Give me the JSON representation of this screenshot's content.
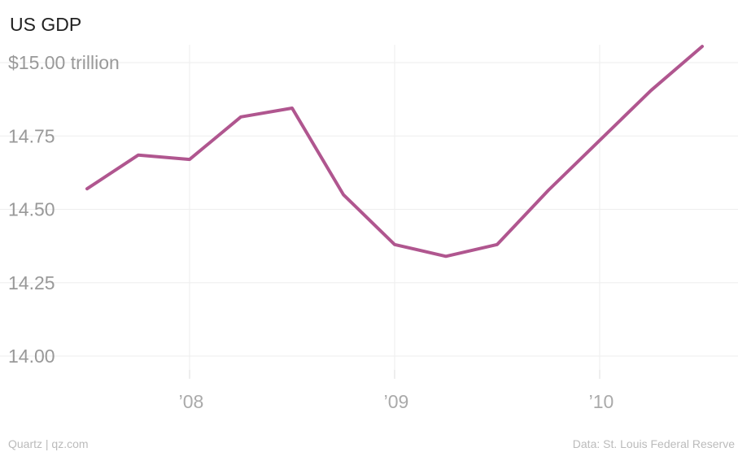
{
  "chart_data": {
    "type": "line",
    "title": "US GDP",
    "y_unit_label": "$15.00 trillion",
    "ylim": [
      14.0,
      15.0
    ],
    "ytick_values": [
      15.0,
      14.75,
      14.5,
      14.25,
      14.0
    ],
    "ytick_labels": [
      "14.75",
      "14.50",
      "14.25",
      "14.00"
    ],
    "xlim": [
      2007.5,
      2010.5
    ],
    "xtick_values": [
      2008,
      2009,
      2010
    ],
    "xtick_labels": [
      "’08",
      "’09",
      "’10"
    ],
    "grid": true,
    "series": [
      {
        "x": [
          2007.5,
          2007.75,
          2008.0,
          2008.25,
          2008.5,
          2008.75,
          2009.0,
          2009.25,
          2009.5,
          2009.75,
          2010.0,
          2010.25,
          2010.5
        ],
        "y": [
          14.57,
          14.685,
          14.67,
          14.815,
          14.845,
          14.55,
          14.38,
          14.34,
          14.38,
          14.565,
          14.735,
          14.905,
          15.055
        ],
        "color": "#b0568f"
      }
    ]
  },
  "footer": {
    "source_left": "Quartz | qz.com",
    "source_right": "Data: St. Louis Federal Reserve"
  }
}
